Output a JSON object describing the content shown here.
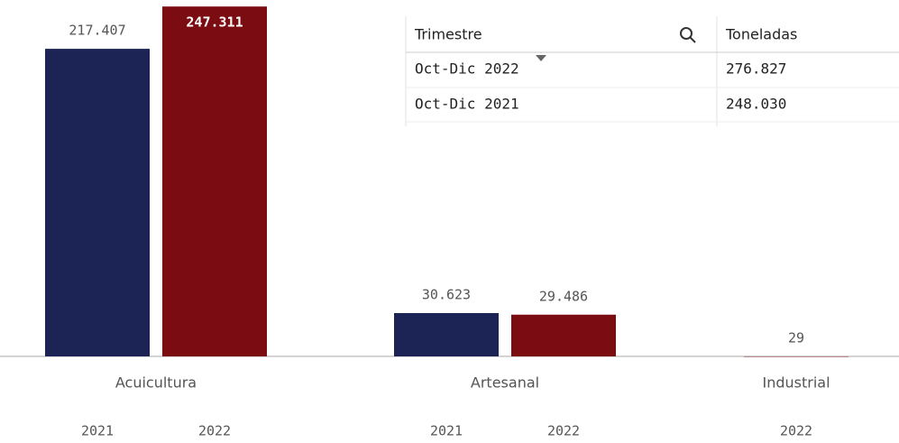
{
  "chart_data": {
    "type": "bar",
    "categories": [
      "Acuicultura",
      "Artesanal",
      "Industrial"
    ],
    "series": [
      {
        "name": "2021",
        "color": "#1b2454",
        "values": [
          217407,
          30623,
          null
        ],
        "value_labels": [
          "217.407",
          "30.623",
          null
        ]
      },
      {
        "name": "2022",
        "color": "#7a0c12",
        "values": [
          247311,
          29486,
          29
        ],
        "value_labels": [
          "247.311",
          "29.486",
          "29"
        ]
      }
    ],
    "ylim": [
      0,
      250000
    ]
  },
  "table": {
    "header": [
      "Trimestre",
      "Toneladas"
    ],
    "rows": [
      [
        "Oct-Dic 2022",
        "276.827"
      ],
      [
        "Oct-Dic 2021",
        "248.030"
      ]
    ]
  }
}
